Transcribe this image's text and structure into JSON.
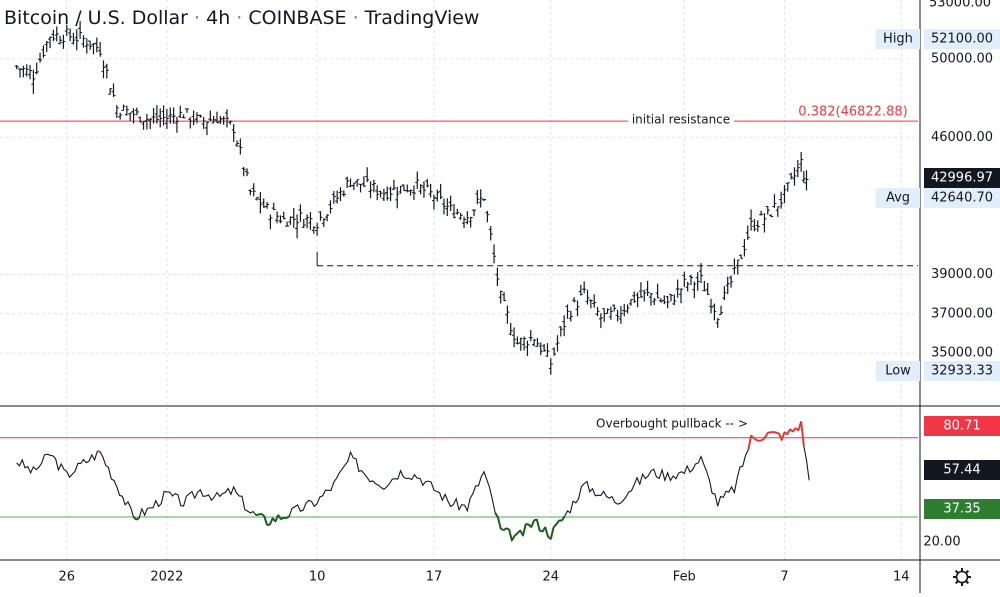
{
  "chart_data": {
    "type": "line",
    "title": "Bitcoin / U.S. Dollar · 4h · COINBASE · TradingView",
    "title_parts": [
      "Bitcoin / U.S. Dollar",
      "4h",
      "COINBASE",
      "TradingView"
    ],
    "price_panel": {
      "kind": "ohlc-bars",
      "y_ticks": [
        35000,
        37000,
        39000,
        46000,
        50000
      ],
      "y_ticks_labels": [
        "35000.00",
        "37000.00",
        "39000.00",
        "46000.00",
        "50000.00"
      ],
      "top_tick_label": "53000.00",
      "ylim": [
        32500,
        53000
      ],
      "labels": {
        "high": {
          "tag": "High",
          "value": "52100.00"
        },
        "low": {
          "tag": "Low",
          "value": "32933.33"
        },
        "avg": {
          "tag": "Avg",
          "value": "42640.70"
        },
        "last": {
          "value": "42996.97"
        }
      },
      "resistance": {
        "price": 46822.88,
        "label": "0.382(46822.88)",
        "annotation": "initial resistance",
        "color": "#f23645"
      },
      "support_level": {
        "price": 39450,
        "style": "dashed",
        "from_date": "2022-01-10"
      },
      "series": [
        {
          "date": "2021-12-23",
          "close": 49600
        },
        {
          "date": "2021-12-24",
          "close": 49200
        },
        {
          "date": "2021-12-25",
          "close": 51200
        },
        {
          "date": "2021-12-26",
          "close": 51200
        },
        {
          "date": "2021-12-27",
          "close": 51000
        },
        {
          "date": "2021-12-28",
          "close": 50500
        },
        {
          "date": "2021-12-29",
          "close": 47500
        },
        {
          "date": "2021-12-30",
          "close": 47200
        },
        {
          "date": "2021-12-31",
          "close": 46900
        },
        {
          "date": "2022-01-01",
          "close": 47000
        },
        {
          "date": "2022-01-02",
          "close": 47200
        },
        {
          "date": "2022-01-03",
          "close": 46800
        },
        {
          "date": "2022-01-04",
          "close": 47000
        },
        {
          "date": "2022-01-05",
          "close": 46500
        },
        {
          "date": "2022-01-06",
          "close": 43200
        },
        {
          "date": "2022-01-07",
          "close": 42300
        },
        {
          "date": "2022-01-08",
          "close": 41800
        },
        {
          "date": "2022-01-09",
          "close": 41900
        },
        {
          "date": "2022-01-10",
          "close": 41700
        },
        {
          "date": "2022-01-11",
          "close": 42700
        },
        {
          "date": "2022-01-12",
          "close": 43800
        },
        {
          "date": "2022-01-13",
          "close": 43500
        },
        {
          "date": "2022-01-14",
          "close": 43200
        },
        {
          "date": "2022-01-15",
          "close": 43400
        },
        {
          "date": "2022-01-16",
          "close": 43500
        },
        {
          "date": "2022-01-17",
          "close": 43000
        },
        {
          "date": "2022-01-18",
          "close": 42300
        },
        {
          "date": "2022-01-19",
          "close": 42000
        },
        {
          "date": "2022-01-20",
          "close": 43000
        },
        {
          "date": "2022-01-21",
          "close": 37800
        },
        {
          "date": "2022-01-22",
          "close": 35500
        },
        {
          "date": "2022-01-23",
          "close": 35800
        },
        {
          "date": "2022-01-24",
          "close": 34500
        },
        {
          "date": "2022-01-25",
          "close": 37000
        },
        {
          "date": "2022-01-26",
          "close": 38000
        },
        {
          "date": "2022-01-27",
          "close": 36800
        },
        {
          "date": "2022-01-28",
          "close": 37000
        },
        {
          "date": "2022-01-29",
          "close": 37800
        },
        {
          "date": "2022-01-30",
          "close": 38000
        },
        {
          "date": "2022-01-31",
          "close": 37500
        },
        {
          "date": "2022-02-01",
          "close": 38500
        },
        {
          "date": "2022-02-02",
          "close": 38700
        },
        {
          "date": "2022-02-03",
          "close": 37000
        },
        {
          "date": "2022-02-04",
          "close": 39000
        },
        {
          "date": "2022-02-05",
          "close": 41500
        },
        {
          "date": "2022-02-06",
          "close": 42000
        },
        {
          "date": "2022-02-07",
          "close": 43000
        },
        {
          "date": "2022-02-08",
          "close": 44700
        },
        {
          "date": "2022-02-08",
          "close": 42996.97
        }
      ]
    },
    "indicator_panel": {
      "kind": "line",
      "upper_band": {
        "value": 80.71,
        "label": "80.71",
        "color": "#f23645"
      },
      "lower_band": {
        "value": 37.35,
        "label": "37.35",
        "color": "#4caf50"
      },
      "last": {
        "value": 57.44,
        "label": "57.44"
      },
      "tick": {
        "value": 20,
        "label": "20.00"
      },
      "annotation": "Overbought pullback -- >",
      "ylim": [
        16,
        97
      ],
      "series": [
        {
          "date": "2021-12-23",
          "value": 68
        },
        {
          "date": "2021-12-24",
          "value": 62
        },
        {
          "date": "2021-12-25",
          "value": 72
        },
        {
          "date": "2021-12-26",
          "value": 60
        },
        {
          "date": "2021-12-27",
          "value": 67
        },
        {
          "date": "2021-12-28",
          "value": 73
        },
        {
          "date": "2021-12-29",
          "value": 55
        },
        {
          "date": "2021-12-30",
          "value": 37
        },
        {
          "date": "2021-12-31",
          "value": 42
        },
        {
          "date": "2022-01-01",
          "value": 50
        },
        {
          "date": "2022-01-02",
          "value": 45
        },
        {
          "date": "2022-01-03",
          "value": 52
        },
        {
          "date": "2022-01-04",
          "value": 48
        },
        {
          "date": "2022-01-05",
          "value": 52
        },
        {
          "date": "2022-01-06",
          "value": 40
        },
        {
          "date": "2022-01-07",
          "value": 35
        },
        {
          "date": "2022-01-08",
          "value": 38
        },
        {
          "date": "2022-01-09",
          "value": 42
        },
        {
          "date": "2022-01-10",
          "value": 46
        },
        {
          "date": "2022-01-11",
          "value": 55
        },
        {
          "date": "2022-01-12",
          "value": 70
        },
        {
          "date": "2022-01-13",
          "value": 60
        },
        {
          "date": "2022-01-14",
          "value": 55
        },
        {
          "date": "2022-01-15",
          "value": 62
        },
        {
          "date": "2022-01-16",
          "value": 60
        },
        {
          "date": "2022-01-17",
          "value": 53
        },
        {
          "date": "2022-01-18",
          "value": 45
        },
        {
          "date": "2022-01-19",
          "value": 43
        },
        {
          "date": "2022-01-20",
          "value": 62
        },
        {
          "date": "2022-01-21",
          "value": 30
        },
        {
          "date": "2022-01-22",
          "value": 26
        },
        {
          "date": "2022-01-23",
          "value": 35
        },
        {
          "date": "2022-01-24",
          "value": 28
        },
        {
          "date": "2022-01-25",
          "value": 40
        },
        {
          "date": "2022-01-26",
          "value": 55
        },
        {
          "date": "2022-01-27",
          "value": 50
        },
        {
          "date": "2022-01-28",
          "value": 46
        },
        {
          "date": "2022-01-29",
          "value": 55
        },
        {
          "date": "2022-01-30",
          "value": 62
        },
        {
          "date": "2022-01-31",
          "value": 60
        },
        {
          "date": "2022-02-01",
          "value": 62
        },
        {
          "date": "2022-02-02",
          "value": 69
        },
        {
          "date": "2022-02-03",
          "value": 45
        },
        {
          "date": "2022-02-04",
          "value": 53
        },
        {
          "date": "2022-02-05",
          "value": 80
        },
        {
          "date": "2022-02-06",
          "value": 83
        },
        {
          "date": "2022-02-07",
          "value": 82
        },
        {
          "date": "2022-02-08",
          "value": 88
        },
        {
          "date": "2022-02-08",
          "value": 57.44
        }
      ]
    },
    "x_ticks": [
      {
        "date": "2021-12-26",
        "label": "26"
      },
      {
        "date": "2022-01-01",
        "label": "2022"
      },
      {
        "date": "2022-01-10",
        "label": "10"
      },
      {
        "date": "2022-01-17",
        "label": "17"
      },
      {
        "date": "2022-01-24",
        "label": "24"
      },
      {
        "date": "2022-02-01",
        "label": "Feb"
      },
      {
        "date": "2022-02-07",
        "label": "7"
      },
      {
        "date": "2022-02-14",
        "label": "14"
      }
    ],
    "grid": true,
    "colors": {
      "bars": "#131722",
      "grid": "#e0e3eb",
      "overbought": "#e53935",
      "oversold": "#1b5e20",
      "label_bg": "#e3eefb"
    }
  },
  "icons": {
    "settings": "gear-icon"
  }
}
